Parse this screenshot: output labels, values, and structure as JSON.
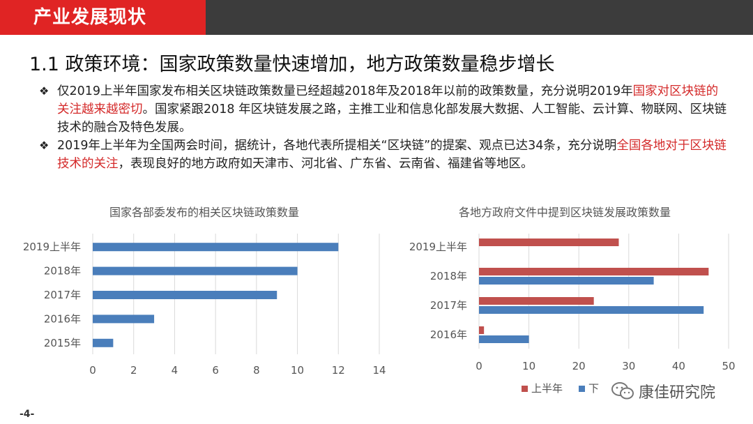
{
  "header": {
    "section_title": "产业发展现状"
  },
  "title": "1.1 政策环境：国家政策数量快速增加，地方政策数量稳步增长",
  "bullets": [
    {
      "marker": "❖",
      "pre": "仅2019上半年国家发布相关区块链政策数量已经超越2018年及2018年以前的政策数量，充分说明2019年",
      "highlight": "国家对区块链的关注越来越密切",
      "post": "。国家紧跟2018 年区块链发展之路，主推工业和信息化部发展大数据、人工智能、云计算、物联网、区块链技术的融合及特色发展。"
    },
    {
      "marker": "❖",
      "pre": "2019年上半年为全国两会时间，据统计，各地代表所提相关“区块链”的提案、观点已达34条，充分说明",
      "highlight": "全国各地对于区块链技术的关注",
      "post": "，表现良好的地方政府如天津市、河北省、广东省、云南省、福建省等地区。"
    }
  ],
  "chart_data": [
    {
      "type": "bar",
      "orientation": "horizontal",
      "title": "国家各部委发布的相关区块链政策数量",
      "categories": [
        "2019上半年",
        "2018年",
        "2017年",
        "2016年",
        "2015年"
      ],
      "series": [
        {
          "name": "",
          "color": "#4a7ebb",
          "values": [
            12,
            10,
            9,
            3,
            1
          ]
        }
      ],
      "xlim": [
        0,
        14
      ],
      "xticks": [
        0,
        2,
        4,
        6,
        8,
        10,
        12,
        14
      ],
      "grid": true,
      "legend": "none"
    },
    {
      "type": "bar",
      "orientation": "horizontal",
      "title": "各地方政府文件中提到区块链发展政策数量",
      "categories": [
        "2019上半年",
        "2018年",
        "2017年",
        "2016年"
      ],
      "series": [
        {
          "name": "上半年",
          "color": "#c0504d",
          "values": [
            28,
            46,
            23,
            1
          ]
        },
        {
          "name": "下",
          "color": "#4a7ebb",
          "values": [
            null,
            35,
            45,
            10
          ]
        }
      ],
      "xlim": [
        0,
        50
      ],
      "xticks": [
        0,
        10,
        20,
        30,
        40,
        50
      ],
      "grid": true,
      "legend": "bottom"
    }
  ],
  "footer": {
    "page_number": "-4-",
    "watermark": "康佳研究院"
  }
}
